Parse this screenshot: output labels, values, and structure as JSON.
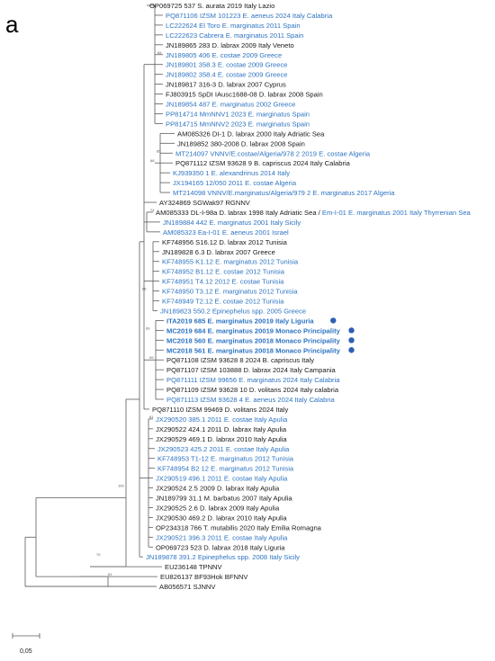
{
  "panel_label": "a",
  "colors": {
    "black": "#1a1a1a",
    "blue": "#2e74c2",
    "dot": "#2e5fb5",
    "line": "#5a5a5a"
  },
  "scale_label": "0,05",
  "leaves": [
    {
      "t": "OP069725 537 S. aurata 2019 Italy Lazio",
      "c": "black"
    },
    {
      "t": "PQ871106 IZSM 101223 E. aeneus 2024 Italy Calabria",
      "c": "blue"
    },
    {
      "t": "LC222624 El Toro E. marginatus 2011 Spain",
      "c": "blue"
    },
    {
      "t": "LC222623 Cabrera E. marginatus 2011 Spain",
      "c": "blue"
    },
    {
      "t": "JN189865 283 D. labrax 2009 Italy Veneto",
      "c": "black"
    },
    {
      "t": "JN189805 406 E. costae 2009 Greece",
      "c": "blue"
    },
    {
      "t": "JN189801 358.3 E. costae 2009 Greece",
      "c": "blue"
    },
    {
      "t": "JN189802 358.4 E. costae 2009 Greece",
      "c": "blue"
    },
    {
      "t": "JN189817 316-3 D. labrax 2007 Cyprus",
      "c": "black"
    },
    {
      "t": "FJ803915 SpDI IAusc1688-08 D. labrax 2008 Spain",
      "c": "black"
    },
    {
      "t": "JN189854 487 E. marginatus 2002 Greece",
      "c": "blue"
    },
    {
      "t": "PP814714 MmNNV1 2023 E. marginatus Spain",
      "c": "blue"
    },
    {
      "t": "PP814715 MmNNV2 2023 E. marginatus Spain",
      "c": "blue"
    },
    {
      "t": "AM085326 DI-1 D. labrax 2000 Italy Adriatic Sea",
      "c": "black"
    },
    {
      "t": "JN189852 380-2008 D. labrax 2008 Spain",
      "c": "black"
    },
    {
      "t": "MT214097 VNNV/E.costae/Algeria/978 2 2019 E. costae Algeria",
      "c": "blue"
    },
    {
      "t": "PQ871112 IZSM 93628 9 B. capriscus 2024 Italy Calabria",
      "c": "black"
    },
    {
      "t": "KJ939350 1 E. alexandrinus 2014 Italy",
      "c": "blue"
    },
    {
      "t": "JX194165 12/050 2011 E. costae Algeria",
      "c": "blue"
    },
    {
      "t": "MT214098 VNNV/E.marginatus/Algeria/979 2 E. marginatus 2017 Algeria",
      "c": "blue"
    },
    {
      "t": "AY324869 SGWak97 RGNNV",
      "c": "black"
    },
    {
      "t": "AM085333 DL-I-98a D. labrax 1998 Italy Adriatic Sea /",
      "c": "black",
      "t2": " Em-I-01 E. marginatus 2001 Italy Thyrrenian Sea",
      "c2": "blue"
    },
    {
      "t": "JN189884 442 E. marginatus 2001 Italy Sicily",
      "c": "blue"
    },
    {
      "t": "AM085323 Ea-I-01 E. aeneus 2001 Israel",
      "c": "blue"
    },
    {
      "t": "KF748956 S16.12 D. labrax 2012 Tunisia",
      "c": "black"
    },
    {
      "t": "JN189828 6.3 D. labrax 2007 Greece",
      "c": "black"
    },
    {
      "t": "KF748955 K1.12 E. marginatus 2012 Tunisia",
      "c": "blue"
    },
    {
      "t": "KF748952 B1.12 E. costae 2012 Tunisia",
      "c": "blue"
    },
    {
      "t": "KF748951 T4.12 2012 E. costae Tunisia",
      "c": "blue"
    },
    {
      "t": "KF748950 T3.12 E. marginatus 2012 Tunisia",
      "c": "blue"
    },
    {
      "t": "KF748949 T2.12 E. costae 2012 Tunisia",
      "c": "blue"
    },
    {
      "t": "JN189823 550.2 Epinephelus spp. 2005 Greece",
      "c": "blue"
    },
    {
      "t": "ITA2019 685 E. marginatus 20019 Italy Liguria",
      "c": "blue",
      "bold": true,
      "dot": true
    },
    {
      "t": "MC2019 684 E. marginatus 20019 Monaco Principality",
      "c": "blue",
      "bold": true,
      "dot": true
    },
    {
      "t": "MC2018 560 E. marginatus 20018 Monaco Principality",
      "c": "blue",
      "bold": true,
      "dot": true
    },
    {
      "t": "MC2018 561 E. marginatus 20018 Monaco Principality",
      "c": "blue",
      "bold": true,
      "dot": true
    },
    {
      "t": "PQ871108 IZSM 93628 8 2024 B. capriscus Italy",
      "c": "black"
    },
    {
      "t": "PQ871107 IZSM 103888 D. labrax 2024 Italy Campania",
      "c": "black"
    },
    {
      "t": "PQ871111 IZSM 99656 E. marginatus 2024 Italy Calabria",
      "c": "blue"
    },
    {
      "t": "PQ871109 IZSM 93628 10 D. volitans 2024 Italy calabria",
      "c": "black"
    },
    {
      "t": "PQ871113 IZSM 93628 4 E. aeneus 2024 Italy Calabria",
      "c": "blue"
    },
    {
      "t": "PQ871110 IZSM 99469 D. volitans 2024 Italy",
      "c": "black"
    },
    {
      "t": "JX290520 385.1 2011 E. costae Italy Apulia",
      "c": "blue"
    },
    {
      "t": "JX290522 424.1 2011 D. labrax Italy Apulia",
      "c": "black"
    },
    {
      "t": "JX290529 469.1 D. labrax 2010 Italy Apulia",
      "c": "black"
    },
    {
      "t": "JX290523 425.2 2011 E. costae Italy Apulia",
      "c": "blue"
    },
    {
      "t": "KF748953 T1-12 E. marginatus 2012 Tunisia",
      "c": "blue"
    },
    {
      "t": "KF748954 B2 12 E. marginatus 2012 Tunisia",
      "c": "blue"
    },
    {
      "t": "JX290519 496.1 2011 E. costae Italy Apulia",
      "c": "blue"
    },
    {
      "t": "JX290524 2.5 2009 D. labrax Italy Apulia",
      "c": "black"
    },
    {
      "t": "JN189799 31.1 M. barbatus 2007 Italy Apulia",
      "c": "black"
    },
    {
      "t": "JX290525 2.6 D. labrax 2009 Italy Apulia",
      "c": "black"
    },
    {
      "t": "JX290530 469.2 D. labrax 2010 Italy Apulia",
      "c": "black"
    },
    {
      "t": "OP234318 766 T. mutabilis 2020 Italy Emilia Romagna",
      "c": "black"
    },
    {
      "t": "JX290521 396.3 2011 E. costae Italy Apulia",
      "c": "blue"
    },
    {
      "t": "OP069723 523 D. labrax 2018 Italy Liguria",
      "c": "black"
    },
    {
      "t": "JN189878 391.2 Epinephelus spp. 2008 Italy Sicily",
      "c": "blue"
    },
    {
      "t": "EU236148 TPNNV",
      "c": "black"
    },
    {
      "t": "EU826137 BF93Hok BFNNV",
      "c": "black"
    },
    {
      "t": "AB056571 SJNNV",
      "c": "black"
    }
  ],
  "bootstrap": [
    {
      "v": "65"
    },
    {
      "v": "68"
    },
    {
      "v": "85"
    },
    {
      "v": "74"
    },
    {
      "v": "99"
    },
    {
      "v": "69"
    },
    {
      "v": "66"
    },
    {
      "v": "61"
    },
    {
      "v": "100"
    },
    {
      "v": "61"
    },
    {
      "v": "70"
    }
  ]
}
